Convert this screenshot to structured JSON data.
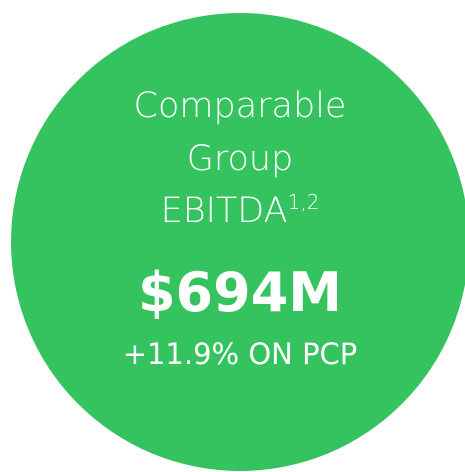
{
  "card": {
    "title_lines": [
      "Comparable",
      "Group",
      "EBITDA"
    ],
    "superscript": "1,2",
    "value": "$694M",
    "change": "+11.9% ON PCP"
  }
}
